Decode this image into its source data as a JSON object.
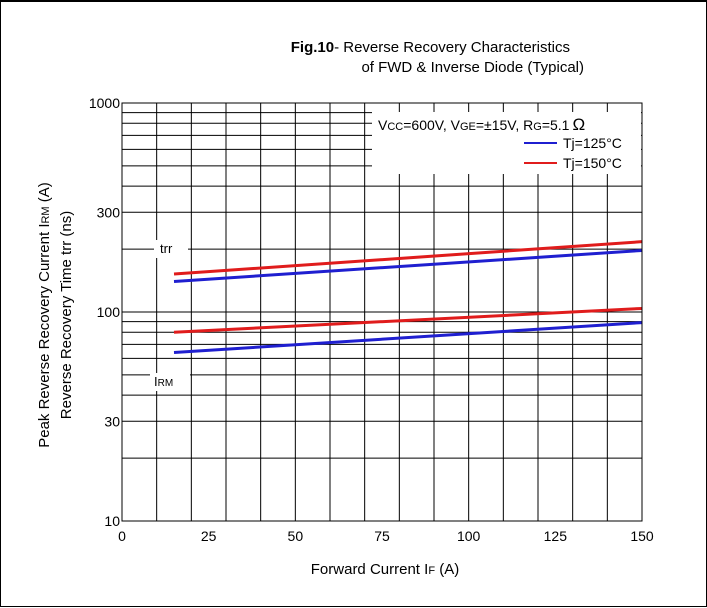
{
  "chart_data": {
    "type": "line",
    "title_bold": "Fig.10",
    "title_line1": "- Reverse Recovery Characteristics",
    "title_line2": "of FWD & Inverse Diode  (Typical)",
    "conditions_text": {
      "vcc_prefix": "V",
      "vcc_sub": "CC",
      "vcc_value": "=600V, ",
      "vge_prefix": "V",
      "vge_sub": "GE",
      "vge_value": "=±15V, ",
      "rg_prefix": "R",
      "rg_sub": "G",
      "rg_value": "=5.1",
      "rg_unit": "Ω"
    },
    "xlabel": {
      "main": "Forward Current I",
      "sub": "F",
      "unit": "  (A)"
    },
    "ylabel_line1": {
      "main": "Peak Reverse Recovery Current  I",
      "sub": "RM",
      "unit": " (A)"
    },
    "ylabel_line2": "Reverse Recovery Time trr  (ns)",
    "xlim": [
      0,
      150
    ],
    "ylim": [
      10,
      1000
    ],
    "yscale": "log",
    "x_ticks": [
      0,
      25,
      50,
      75,
      100,
      125,
      150
    ],
    "x_tick_labels": [
      "0",
      "25",
      "50",
      "75",
      "100",
      "125",
      "150"
    ],
    "y_major_ticks": [
      10,
      30,
      100,
      300,
      1000
    ],
    "y_tick_labels": [
      "10",
      "30",
      "100",
      "300",
      "1000"
    ],
    "grid": true,
    "legend_position": "top-right",
    "annotation_trr": "trr",
    "annotation_irm": {
      "main": "I",
      "sub": "RM"
    },
    "series": [
      {
        "name": "Tj=125°C",
        "color": "#1f1fd0",
        "x": [
          15,
          150
        ],
        "y": [
          140,
          197
        ],
        "group": "trr"
      },
      {
        "name": "Tj=150°C",
        "color": "#e01c1c",
        "x": [
          15,
          150
        ],
        "y": [
          152,
          217
        ],
        "group": "trr"
      },
      {
        "name": "Tj=125°C",
        "color": "#1f1fd0",
        "x": [
          15,
          150
        ],
        "y": [
          64,
          89
        ],
        "group": "IRM"
      },
      {
        "name": "Tj=150°C",
        "color": "#e01c1c",
        "x": [
          15,
          150
        ],
        "y": [
          80,
          104
        ],
        "group": "IRM"
      }
    ],
    "legend": [
      {
        "label": "Tj=125°C",
        "color": "#1f1fd0"
      },
      {
        "label": "Tj=150°C",
        "color": "#e01c1c"
      }
    ]
  }
}
